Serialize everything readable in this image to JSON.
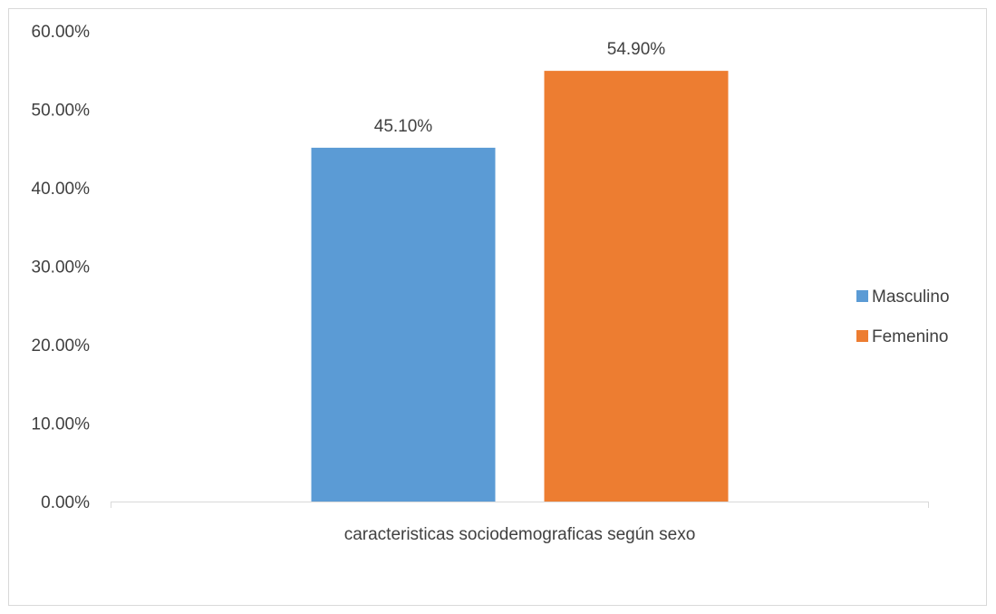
{
  "chart_data": {
    "type": "bar",
    "categories": [
      "caracteristicas sociodemograficas según sexo"
    ],
    "series": [
      {
        "name": "Masculino",
        "values": [
          0.451
        ],
        "color": "#5b9bd5",
        "data_label": "45.10%"
      },
      {
        "name": "Femenino",
        "values": [
          0.549
        ],
        "color": "#ed7d31",
        "data_label": "54.90%"
      }
    ],
    "title": "",
    "xlabel": "",
    "ylabel": "",
    "ylim": [
      0,
      0.6
    ],
    "yticks": [
      {
        "value": 0.0,
        "label": "0.00%"
      },
      {
        "value": 0.1,
        "label": "10.00%"
      },
      {
        "value": 0.2,
        "label": "20.00%"
      },
      {
        "value": 0.3,
        "label": "30.00%"
      },
      {
        "value": 0.4,
        "label": "40.00%"
      },
      {
        "value": 0.5,
        "label": "50.00%"
      },
      {
        "value": 0.6,
        "label": "60.00%"
      }
    ],
    "grid": false,
    "legend_position": "right"
  }
}
